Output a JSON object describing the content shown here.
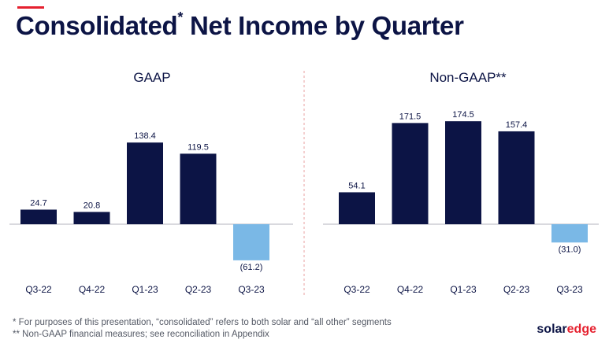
{
  "slide": {
    "title_main": "Consolidated",
    "title_sup": "*",
    "title_rest": " Net Income by Quarter",
    "footnote_1": "* For purposes of this presentation, “consolidated” refers to both solar and “all other” segments",
    "footnote_2": "** Non-GAAP financial measures; see reconciliation in Appendix",
    "logo_solar": "solar",
    "logo_edge": "edge"
  },
  "colors": {
    "positive_bar": "#0c1445",
    "negative_bar": "#7ab8e6",
    "accent": "#e5202e",
    "divider": "#e8a0a0"
  },
  "chart_data": [
    {
      "type": "bar",
      "title": "GAAP",
      "categories": [
        "Q3-22",
        "Q4-22",
        "Q1-23",
        "Q2-23",
        "Q3-23"
      ],
      "values": [
        24.7,
        20.8,
        138.4,
        119.5,
        -61.2
      ],
      "value_labels": [
        "24.7",
        "20.8",
        "138.4",
        "119.5",
        "(61.2)"
      ],
      "ylim": [
        -61.2,
        174.5
      ],
      "grid": false
    },
    {
      "type": "bar",
      "title": "Non-GAAP**",
      "categories": [
        "Q3-22",
        "Q4-22",
        "Q1-23",
        "Q2-23",
        "Q3-23"
      ],
      "values": [
        54.1,
        171.5,
        174.5,
        157.4,
        -31.0
      ],
      "value_labels": [
        "54.1",
        "171.5",
        "174.5",
        "157.4",
        "(31.0)"
      ],
      "ylim": [
        -61.2,
        174.5
      ],
      "grid": false
    }
  ]
}
